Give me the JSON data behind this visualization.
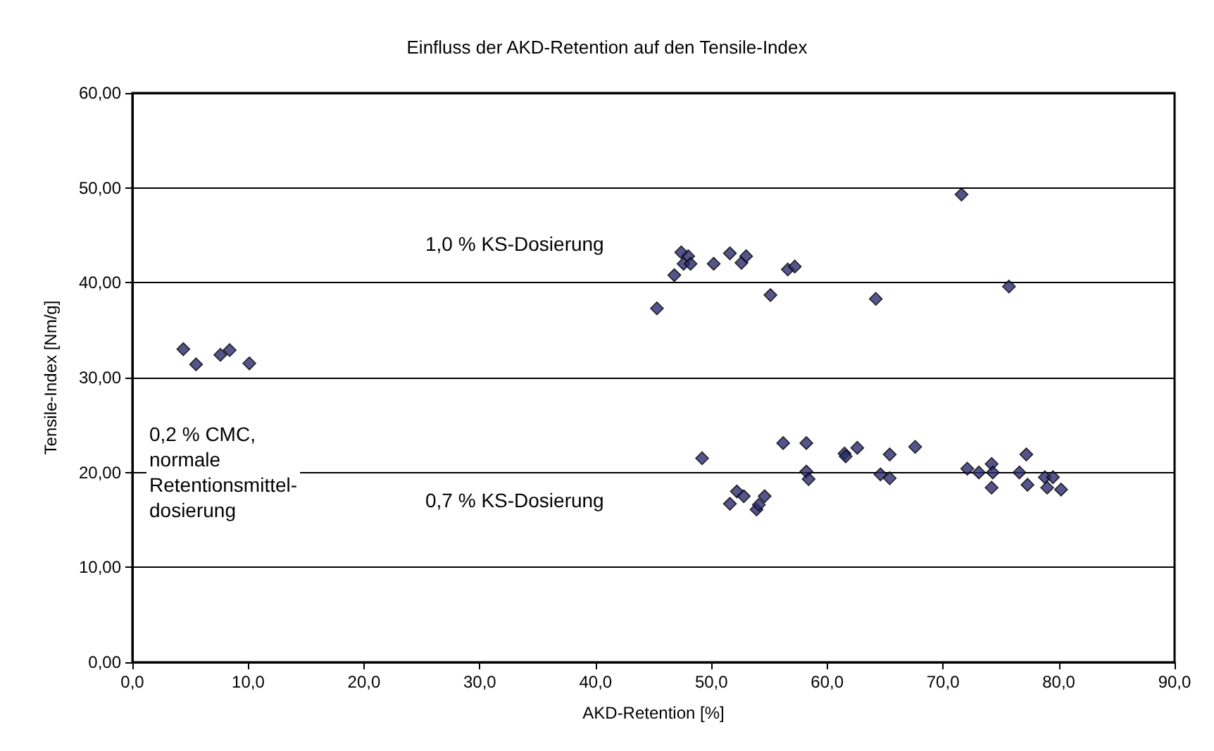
{
  "chart_data": {
    "type": "scatter",
    "title": "Einfluss der AKD-Retention auf den Tensile-Index",
    "xlabel": "AKD-Retention [%]",
    "ylabel": "Tensile-Index [Nm/g]",
    "marker": "diamond",
    "grid": "y",
    "xlim": [
      0,
      90
    ],
    "xticks": [
      {
        "value": 0,
        "label": "0,0"
      },
      {
        "value": 10,
        "label": "10,0"
      },
      {
        "value": 20,
        "label": "20,0"
      },
      {
        "value": 30,
        "label": "30,0"
      },
      {
        "value": 40,
        "label": "40,0"
      },
      {
        "value": 50,
        "label": "50,0"
      },
      {
        "value": 60,
        "label": "60,0"
      },
      {
        "value": 70,
        "label": "70,0"
      },
      {
        "value": 80,
        "label": "80,0"
      },
      {
        "value": 90,
        "label": "90,0"
      }
    ],
    "ylim": [
      0,
      60
    ],
    "yticks": [
      {
        "value": 0,
        "label": "0,00"
      },
      {
        "value": 10,
        "label": "10,00"
      },
      {
        "value": 20,
        "label": "20,00"
      },
      {
        "value": 30,
        "label": "30,00"
      },
      {
        "value": 40,
        "label": "40,00"
      },
      {
        "value": 50,
        "label": "50,00"
      },
      {
        "value": 60,
        "label": "60,00"
      }
    ],
    "annotations": [
      "1,0 % KS-Dosierung",
      "0,7 % KS-Dosierung",
      "0,2 % CMC,\nnormale\nRetentionsmittel-\ndosierung"
    ],
    "series": [
      {
        "color": "#2b2a6e",
        "x": [
          4.4,
          5.5,
          7.6,
          8.4,
          10.1,
          45.3,
          46.8,
          47.4,
          47.6,
          48.0,
          48.2,
          50.2,
          51.6,
          52.6,
          53.0,
          55.1,
          56.6,
          57.2,
          64.2,
          71.6,
          75.7,
          49.2,
          51.6,
          52.2,
          52.8,
          53.9,
          54.1,
          54.6,
          56.2,
          58.2,
          58.2,
          58.4,
          61.5,
          61.6,
          62.6,
          64.6,
          65.4,
          65.4,
          67.6,
          72.1,
          73.1,
          74.2,
          74.2,
          74.3,
          76.6,
          77.2,
          77.3,
          78.8,
          79.0,
          79.5,
          80.2
        ],
        "values": [
          33.0,
          31.4,
          32.4,
          32.9,
          31.5,
          37.3,
          40.8,
          43.2,
          42.0,
          42.8,
          42.0,
          42.0,
          43.1,
          42.1,
          42.8,
          38.7,
          41.4,
          41.7,
          38.3,
          49.3,
          39.6,
          21.5,
          16.7,
          18.0,
          17.5,
          16.1,
          16.6,
          17.5,
          23.1,
          23.1,
          20.1,
          19.3,
          22.0,
          21.7,
          22.6,
          19.8,
          19.4,
          21.9,
          22.7,
          20.4,
          20.0,
          20.9,
          18.4,
          20.0,
          20.0,
          21.9,
          18.7,
          19.5,
          18.4,
          19.5,
          18.2
        ]
      }
    ]
  }
}
